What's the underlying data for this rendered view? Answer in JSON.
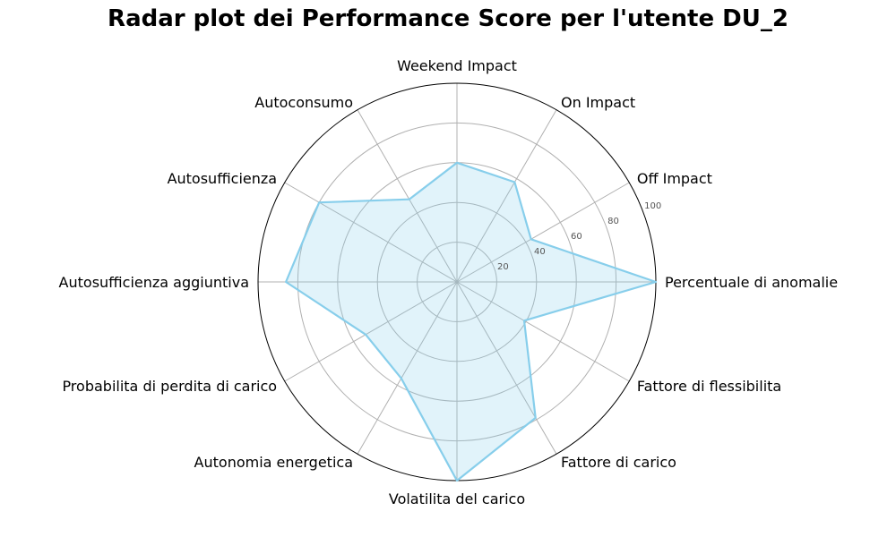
{
  "chart_data": {
    "type": "radar",
    "title": "Radar plot dei Performance Score per l'utente DU_2",
    "categories": [
      "Percentuale di anomalie",
      "Off Impact",
      "On Impact",
      "Weekend Impact",
      "Autoconsumo",
      "Autosufficienza",
      "Autosufficienza aggiuntiva",
      "Probabilita di perdita di carico",
      "Autonomia energetica",
      "Volatilita del carico",
      "Fattore di carico",
      "Fattore di flessibilita"
    ],
    "values": [
      100,
      43,
      58,
      60,
      48,
      80,
      86,
      53,
      56,
      100,
      79,
      39
    ],
    "rlim": [
      0,
      100
    ],
    "rticks": [
      20,
      40,
      60,
      80,
      100
    ],
    "grid": true,
    "line_color": "#87CEEB",
    "fill_color": "#87CEEB",
    "fill_opacity": 0.25
  }
}
